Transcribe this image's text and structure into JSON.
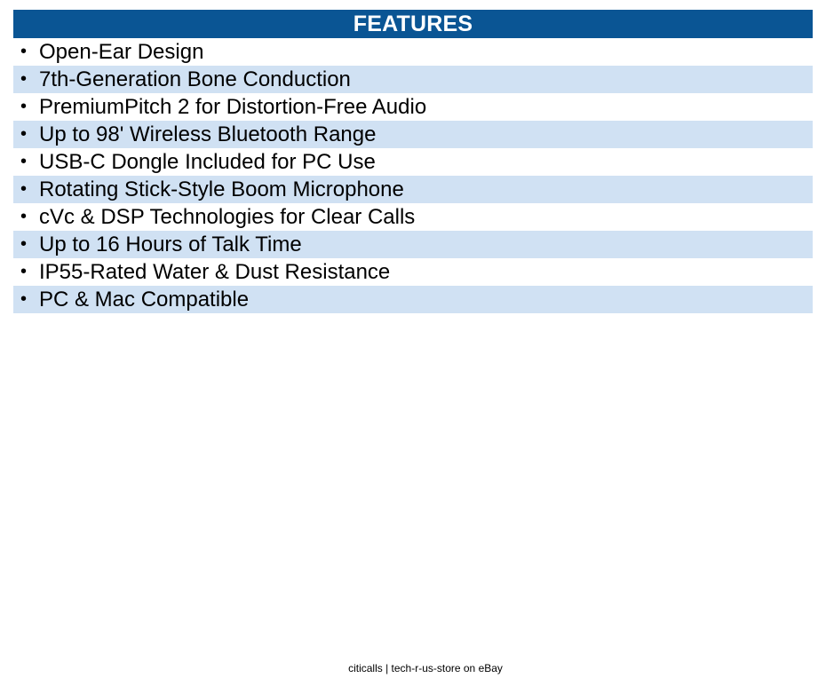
{
  "header": {
    "title": "FEATURES"
  },
  "bullet": "•",
  "features": [
    "Open-Ear Design",
    "7th-Generation Bone Conduction",
    "PremiumPitch 2 for Distortion-Free Audio",
    "Up to 98' Wireless Bluetooth Range",
    "USB-C Dongle Included for PC Use",
    "Rotating Stick-Style Boom Microphone",
    "cVc & DSP Technologies for Clear Calls",
    "Up to 16 Hours of Talk Time",
    "IP55-Rated Water & Dust Resistance",
    "PC & Mac Compatible"
  ],
  "footer": {
    "text": "citicalls | tech-r-us-store on eBay"
  },
  "colors": {
    "header_bg": "#0a5594",
    "header_text": "#ffffff",
    "stripe_bg": "#d0e1f3"
  }
}
